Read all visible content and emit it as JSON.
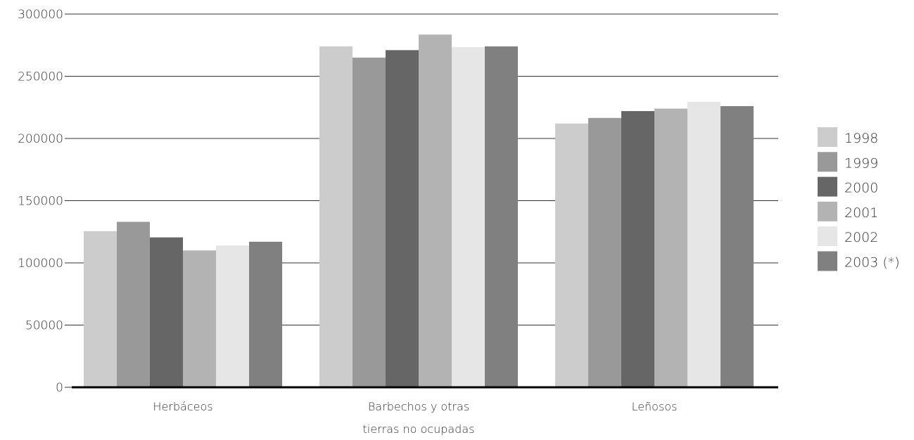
{
  "chart_data": {
    "type": "bar",
    "categories": [
      "Herbáceos",
      "Barbechos y otras tierras no ocupadas",
      "Leñosos"
    ],
    "category_label_lines": [
      [
        "Herbáceos"
      ],
      [
        "Barbechos y otras",
        "tierras no ocupadas"
      ],
      [
        "Leñosos"
      ]
    ],
    "series": [
      {
        "name": "1998",
        "color": "#cccccc",
        "values": [
          125500,
          274000,
          212000
        ]
      },
      {
        "name": "1999",
        "color": "#999999",
        "values": [
          133000,
          265000,
          216500
        ]
      },
      {
        "name": "2000",
        "color": "#666666",
        "values": [
          120500,
          271000,
          222000
        ]
      },
      {
        "name": "2001",
        "color": "#b3b3b3",
        "values": [
          110000,
          283500,
          224000
        ]
      },
      {
        "name": "2002",
        "color": "#e6e6e6",
        "values": [
          114000,
          273500,
          229500
        ]
      },
      {
        "name": "2003 (*)",
        "color": "#808080",
        "values": [
          117000,
          274000,
          226000
        ]
      }
    ],
    "yticks": [
      "0",
      "50000",
      "100000",
      "150000",
      "200000",
      "250000",
      "300000"
    ],
    "ylim": [
      0,
      300000
    ],
    "grid": true,
    "legend_position": "right"
  }
}
